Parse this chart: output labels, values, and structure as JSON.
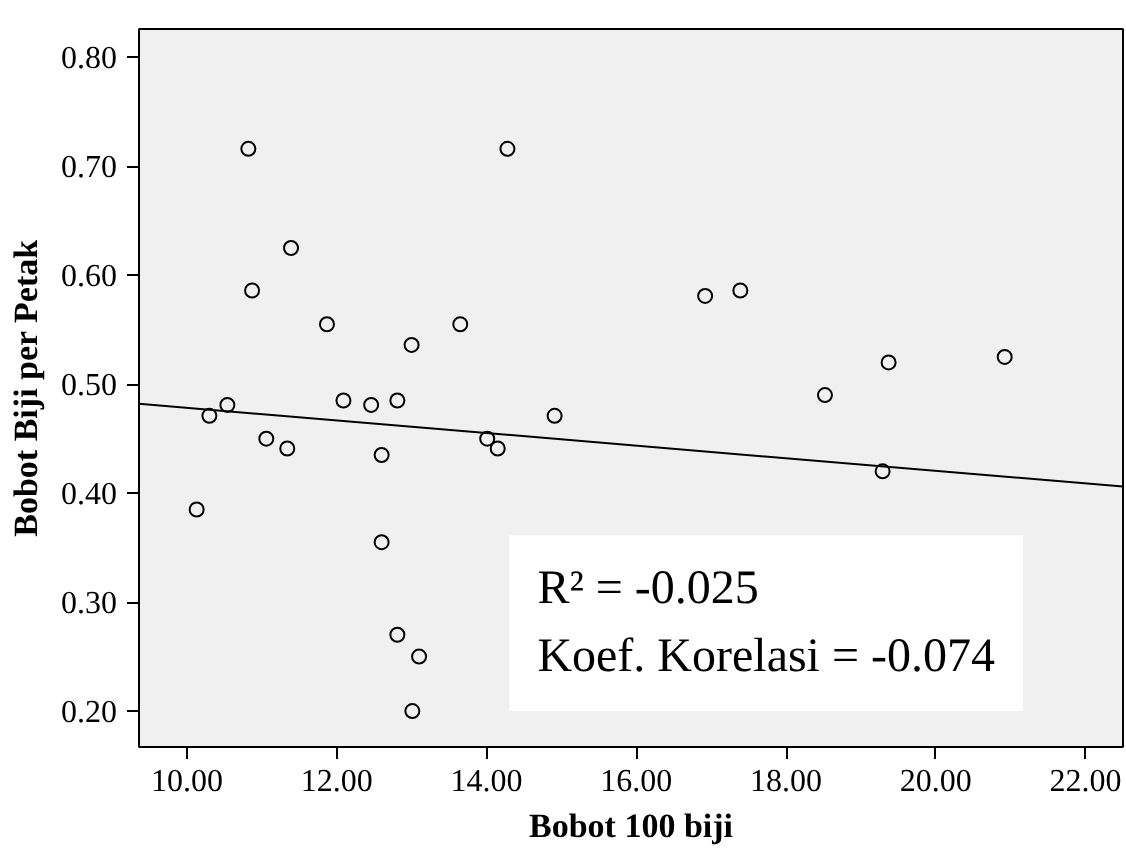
{
  "chart_data": {
    "type": "scatter",
    "xlabel": "Bobot 100 biji",
    "ylabel": "Bobot Biji per Petak",
    "xlim": [
      9.36,
      22.5
    ],
    "ylim": [
      0.167,
      0.826
    ],
    "xticks": [
      {
        "value": 10,
        "label": "10.00"
      },
      {
        "value": 12,
        "label": "12.00"
      },
      {
        "value": 14,
        "label": "14.00"
      },
      {
        "value": 16,
        "label": "16.00"
      },
      {
        "value": 18,
        "label": "18.00"
      },
      {
        "value": 20,
        "label": "20.00"
      },
      {
        "value": 22,
        "label": "22.00"
      }
    ],
    "yticks": [
      {
        "value": 0.2,
        "label": "0.20"
      },
      {
        "value": 0.3,
        "label": "0.30"
      },
      {
        "value": 0.4,
        "label": "0.40"
      },
      {
        "value": 0.5,
        "label": "0.50"
      },
      {
        "value": 0.6,
        "label": "0.60"
      },
      {
        "value": 0.7,
        "label": "0.70"
      },
      {
        "value": 0.8,
        "label": "0.80"
      }
    ],
    "grid": false,
    "annotations": [
      "R² = -0.025",
      "Koef. Korelasi = -0.074"
    ],
    "series": [
      {
        "marker": "circle",
        "color": "#000000",
        "x": [
          10.82,
          14.28,
          11.39,
          10.87,
          11.87,
          13.65,
          13.0,
          10.3,
          10.54,
          12.09,
          12.46,
          12.81,
          14.91,
          11.06,
          11.34,
          12.6,
          14.01,
          14.15,
          10.13,
          12.6,
          12.81,
          13.1,
          13.01,
          16.92,
          17.39,
          19.37,
          20.92,
          18.52,
          19.29
        ],
        "values": [
          0.716,
          0.716,
          0.625,
          0.586,
          0.555,
          0.555,
          0.536,
          0.471,
          0.481,
          0.485,
          0.481,
          0.485,
          0.471,
          0.45,
          0.441,
          0.435,
          0.45,
          0.441,
          0.385,
          0.355,
          0.27,
          0.25,
          0.2,
          0.581,
          0.586,
          0.52,
          0.525,
          0.49,
          0.42
        ]
      },
      {
        "type": "line",
        "marker": "none",
        "color": "#000000",
        "x": [
          9.36,
          22.5
        ],
        "values": [
          0.482,
          0.406
        ]
      }
    ]
  }
}
